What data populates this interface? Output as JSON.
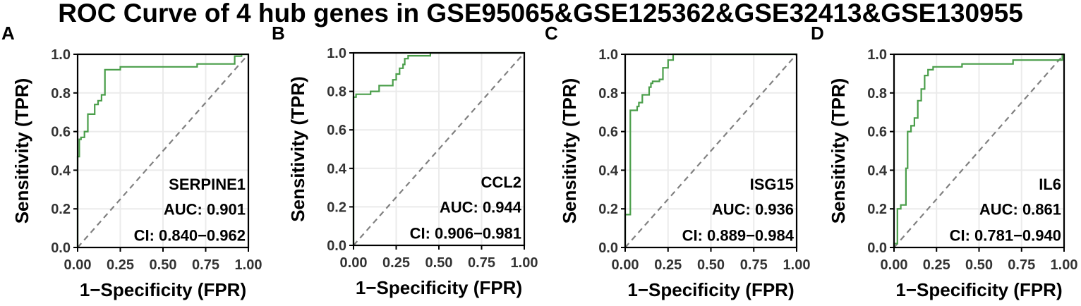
{
  "figure_title": "ROC Curve of 4 hub genes in GSE95065&GSE125362&GSE32413&GSE130955",
  "colors": {
    "curve": "#4a9e4a",
    "diagonal": "#808080",
    "grid": "#ebebeb",
    "axis": "#000000"
  },
  "chart_data": [
    {
      "type": "line",
      "panel_label": "A",
      "gene": "SERPINE1",
      "auc_text": "AUC: 0.901",
      "ci_text": "CI: 0.840−0.962",
      "xlabel": "1−Specificity (FPR)",
      "ylabel": "Sensitivity (TPR)",
      "xlim": [
        0,
        1
      ],
      "ylim": [
        0,
        1
      ],
      "xticks": [
        "0.00",
        "0.25",
        "0.50",
        "0.75",
        "1.00"
      ],
      "yticks": [
        "0.0",
        "0.2",
        "0.4",
        "0.6",
        "0.8",
        "1.0"
      ],
      "grid": true,
      "diagonal": true,
      "x": [
        0,
        0,
        0.01,
        0.01,
        0.02,
        0.02,
        0.04,
        0.04,
        0.06,
        0.06,
        0.1,
        0.1,
        0.12,
        0.12,
        0.14,
        0.14,
        0.16,
        0.16,
        0.25,
        0.25,
        0.7,
        0.7,
        0.92,
        0.92,
        0.96,
        0.96,
        1.0
      ],
      "y": [
        0,
        0.47,
        0.47,
        0.56,
        0.56,
        0.57,
        0.57,
        0.6,
        0.6,
        0.69,
        0.69,
        0.74,
        0.74,
        0.76,
        0.76,
        0.79,
        0.79,
        0.92,
        0.92,
        0.935,
        0.935,
        0.95,
        0.95,
        0.99,
        0.99,
        1.0,
        1.0
      ]
    },
    {
      "type": "line",
      "panel_label": "B",
      "gene": "CCL2",
      "auc_text": "AUC: 0.944",
      "ci_text": "CI: 0.906−0.981",
      "xlabel": "1−Specificity (FPR)",
      "ylabel": "Sensitivity (TPR)",
      "xlim": [
        0,
        1
      ],
      "ylim": [
        0,
        1
      ],
      "xticks": [
        "0.00",
        "0.25",
        "0.50",
        "0.75",
        "1.00"
      ],
      "yticks": [
        "0.0",
        "0.2",
        "0.4",
        "0.6",
        "0.8",
        "1.0"
      ],
      "grid": true,
      "diagonal": true,
      "x": [
        0,
        0,
        0.015,
        0.015,
        0.1,
        0.1,
        0.15,
        0.15,
        0.23,
        0.23,
        0.25,
        0.25,
        0.27,
        0.27,
        0.29,
        0.29,
        0.3,
        0.3,
        0.32,
        0.32,
        0.45,
        0.45,
        1.0
      ],
      "y": [
        0,
        0.77,
        0.77,
        0.785,
        0.785,
        0.8,
        0.8,
        0.83,
        0.83,
        0.86,
        0.86,
        0.89,
        0.89,
        0.92,
        0.92,
        0.94,
        0.94,
        0.97,
        0.97,
        0.985,
        0.985,
        1.0,
        1.0
      ]
    },
    {
      "type": "line",
      "panel_label": "C",
      "gene": "ISG15",
      "auc_text": "AUC: 0.936",
      "ci_text": "CI: 0.889−0.984",
      "xlabel": "1−Specificity (FPR)",
      "ylabel": "Sensitivity (TPR)",
      "xlim": [
        0,
        1
      ],
      "ylim": [
        0,
        1
      ],
      "xticks": [
        "0.00",
        "0.25",
        "0.50",
        "0.75",
        "1.00"
      ],
      "yticks": [
        "0.0",
        "0.2",
        "0.4",
        "0.6",
        "0.8",
        "1.0"
      ],
      "grid": true,
      "diagonal": true,
      "x": [
        0,
        0,
        0.03,
        0.03,
        0.07,
        0.07,
        0.08,
        0.08,
        0.1,
        0.1,
        0.14,
        0.14,
        0.15,
        0.15,
        0.16,
        0.16,
        0.2,
        0.2,
        0.22,
        0.22,
        0.25,
        0.25,
        0.28,
        0.28,
        1.0
      ],
      "y": [
        0,
        0.17,
        0.17,
        0.71,
        0.71,
        0.73,
        0.73,
        0.75,
        0.75,
        0.79,
        0.79,
        0.83,
        0.83,
        0.85,
        0.85,
        0.86,
        0.86,
        0.87,
        0.87,
        0.93,
        0.93,
        0.97,
        0.97,
        1.0,
        1.0
      ]
    },
    {
      "type": "line",
      "panel_label": "D",
      "gene": "IL6",
      "auc_text": "AUC: 0.861",
      "ci_text": "CI: 0.781−0.940",
      "xlabel": "1−Specificity (FPR)",
      "ylabel": "Sensitivity (TPR)",
      "xlim": [
        0,
        1
      ],
      "ylim": [
        0,
        1
      ],
      "xticks": [
        "0.00",
        "0.25",
        "0.50",
        "0.75",
        "1.00"
      ],
      "yticks": [
        "0.0",
        "0.2",
        "0.4",
        "0.6",
        "0.8",
        "1.0"
      ],
      "grid": true,
      "diagonal": true,
      "x": [
        0,
        0,
        0.02,
        0.02,
        0.04,
        0.04,
        0.07,
        0.07,
        0.08,
        0.08,
        0.1,
        0.1,
        0.12,
        0.12,
        0.14,
        0.14,
        0.16,
        0.16,
        0.18,
        0.18,
        0.2,
        0.2,
        0.23,
        0.23,
        0.4,
        0.4,
        0.7,
        0.7,
        0.99,
        0.99,
        1.0
      ],
      "y": [
        0,
        0.02,
        0.02,
        0.2,
        0.2,
        0.22,
        0.22,
        0.41,
        0.41,
        0.6,
        0.6,
        0.63,
        0.63,
        0.67,
        0.67,
        0.76,
        0.76,
        0.82,
        0.82,
        0.89,
        0.89,
        0.92,
        0.92,
        0.935,
        0.935,
        0.95,
        0.95,
        0.97,
        0.97,
        1.0,
        1.0
      ]
    }
  ]
}
